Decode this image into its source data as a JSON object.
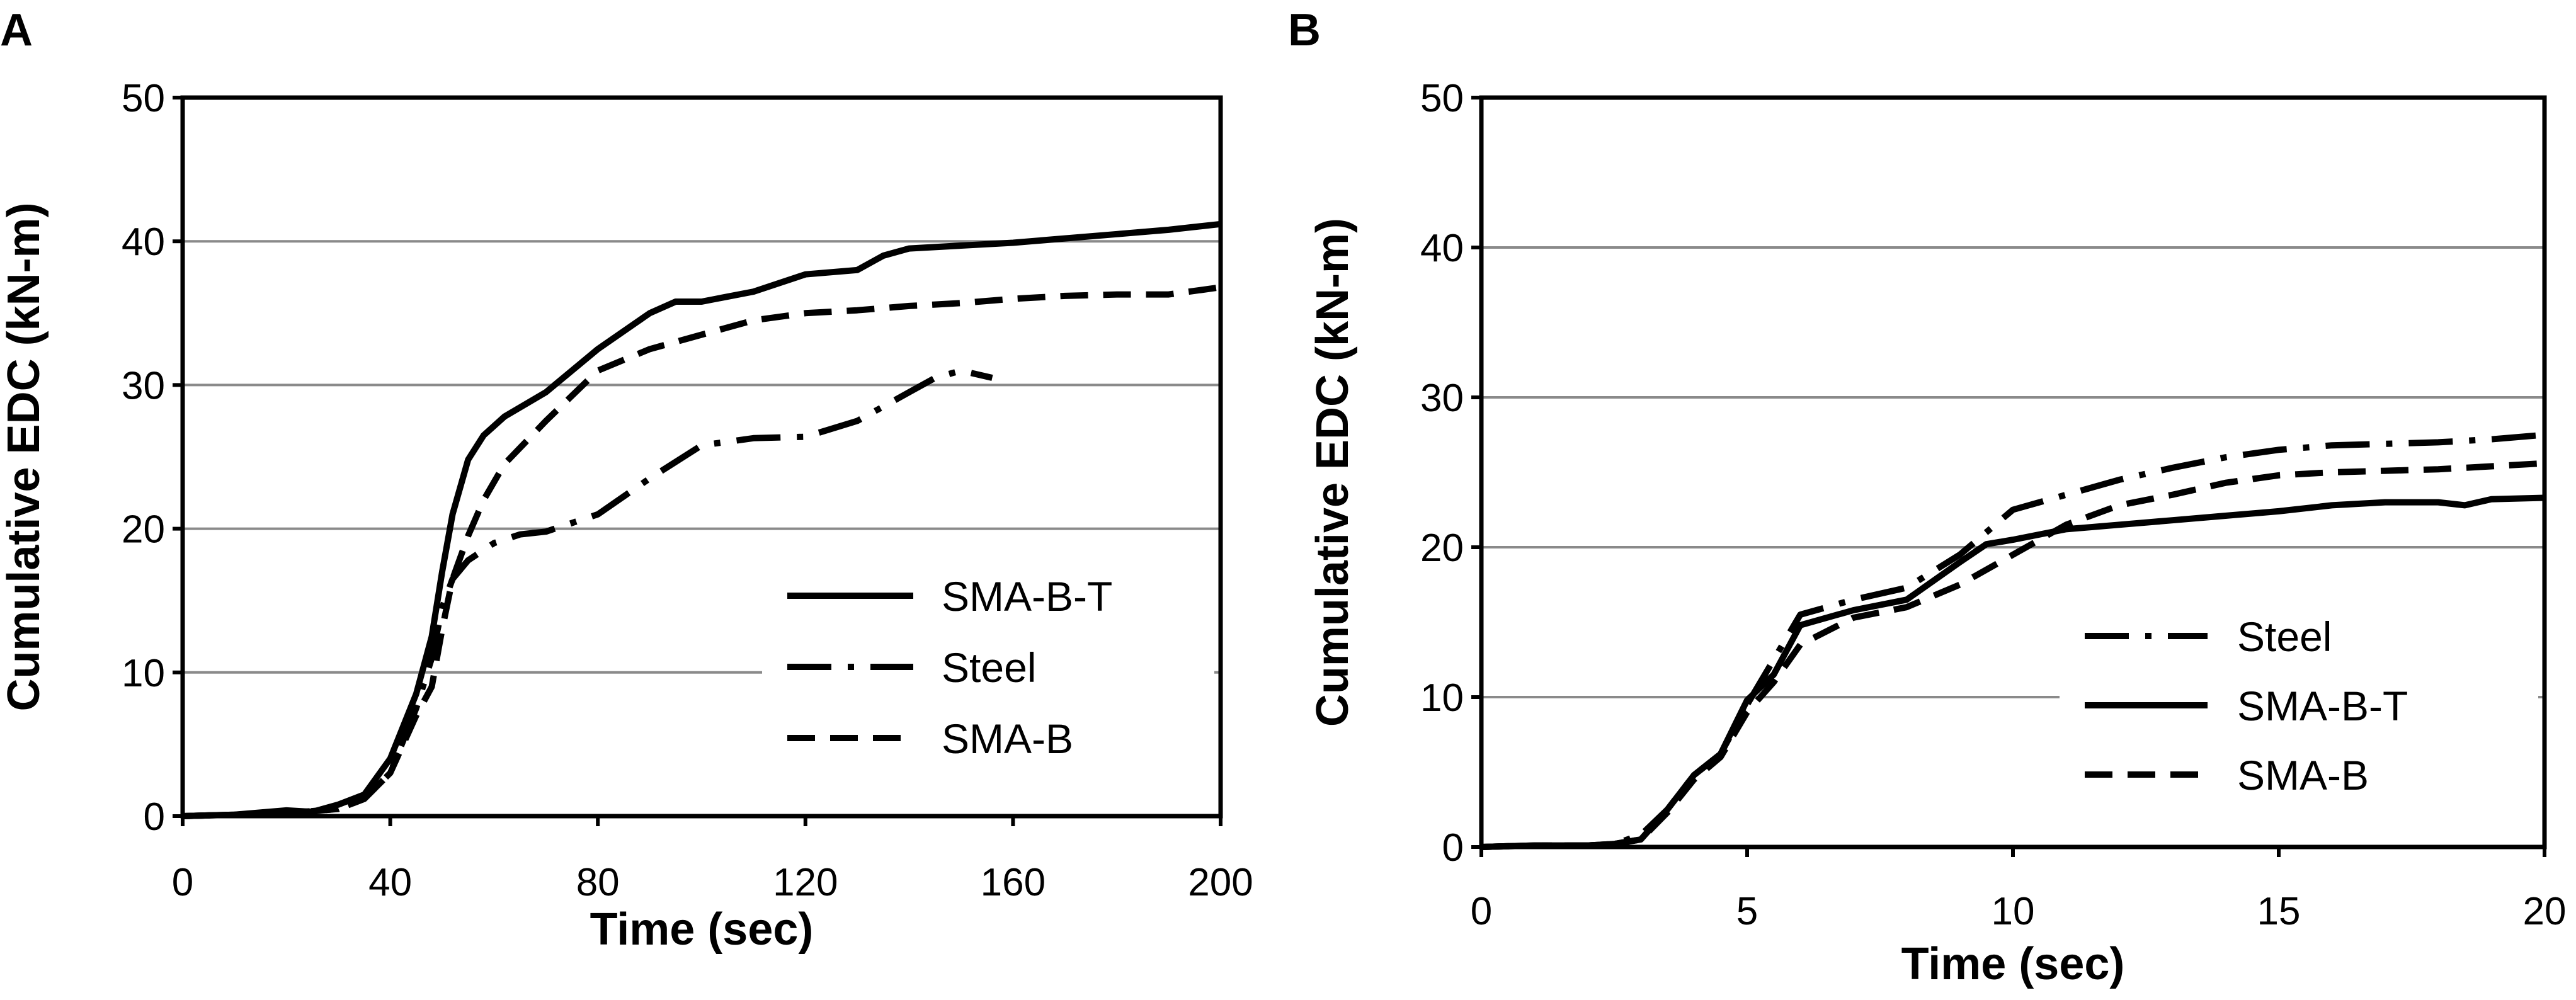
{
  "chart_data": [
    {
      "panel_label": "A",
      "type": "line",
      "xlabel": "Time (sec)",
      "ylabel": "Cumulative EDC (kN-m)",
      "xlim": [
        0,
        200
      ],
      "ylim": [
        0,
        50
      ],
      "x_ticks": [
        "0",
        "40",
        "80",
        "120",
        "160",
        "200"
      ],
      "y_ticks": [
        "0",
        "10",
        "20",
        "30",
        "40",
        "50"
      ],
      "legend": [
        "SMA-B-T",
        "Steel",
        "SMA-B"
      ],
      "series": [
        {
          "name": "SMA-B-T",
          "style": "solid",
          "x": [
            0,
            10,
            20,
            25,
            30,
            35,
            40,
            45,
            48,
            50,
            52,
            55,
            58,
            62,
            70,
            80,
            90,
            95,
            100,
            110,
            120,
            130,
            135,
            140,
            150,
            160,
            170,
            180,
            190,
            200
          ],
          "y": [
            0,
            0.1,
            0.4,
            0.3,
            0.8,
            1.5,
            4,
            8.5,
            12.5,
            17,
            21,
            24.8,
            26.5,
            27.8,
            29.5,
            32.5,
            35,
            35.8,
            35.8,
            36.5,
            37.7,
            38,
            39,
            39.5,
            39.7,
            39.9,
            40.2,
            40.5,
            40.8,
            41.2
          ]
        },
        {
          "name": "Steel",
          "style": "dashdot",
          "x": [
            0,
            10,
            20,
            30,
            35,
            40,
            45,
            48,
            50,
            52,
            55,
            60,
            65,
            70,
            80,
            90,
            100,
            110,
            120,
            130,
            140,
            145,
            150,
            156
          ],
          "y": [
            0,
            0.1,
            0.2,
            0.5,
            1.2,
            3,
            7.5,
            11,
            14.5,
            16.5,
            17.8,
            19,
            19.6,
            19.8,
            21,
            23.5,
            25.8,
            26.3,
            26.4,
            27.5,
            29.5,
            30.5,
            31,
            30.5
          ]
        },
        {
          "name": "SMA-B",
          "style": "dashed",
          "x": [
            0,
            10,
            20,
            30,
            35,
            40,
            45,
            48,
            50,
            52,
            55,
            58,
            62,
            70,
            80,
            90,
            100,
            110,
            120,
            130,
            140,
            150,
            160,
            170,
            180,
            190,
            200
          ],
          "y": [
            0,
            0.1,
            0.2,
            0.5,
            1.2,
            3,
            7,
            9,
            13,
            16.5,
            19.5,
            22,
            24.5,
            27.5,
            31,
            32.5,
            33.5,
            34.5,
            35,
            35.2,
            35.5,
            35.7,
            36,
            36.2,
            36.3,
            36.3,
            36.8
          ]
        }
      ]
    },
    {
      "panel_label": "B",
      "type": "line",
      "xlabel": "Time (sec)",
      "ylabel": "Cumulative EDC (kN-m)",
      "xlim": [
        0,
        20
      ],
      "ylim": [
        0,
        50
      ],
      "x_ticks": [
        "0",
        "5",
        "10",
        "15",
        "20"
      ],
      "y_ticks": [
        "0",
        "10",
        "20",
        "30",
        "40",
        "50"
      ],
      "legend": [
        "Steel",
        "SMA-B-T",
        "SMA-B"
      ],
      "series": [
        {
          "name": "Steel",
          "style": "dashdot",
          "x": [
            0,
            1,
            2,
            2.5,
            3,
            3.5,
            4,
            4.5,
            5,
            5.5,
            6,
            7,
            8,
            9,
            10,
            11,
            12,
            13,
            14,
            15,
            16,
            17,
            18,
            19,
            20
          ],
          "y": [
            0,
            0.1,
            0.1,
            0.2,
            0.8,
            2.5,
            4.8,
            6.2,
            9.5,
            12.5,
            15.5,
            16.5,
            17.3,
            19.5,
            22.5,
            23.5,
            24.5,
            25.3,
            26,
            26.5,
            26.8,
            26.9,
            27,
            27.2,
            27.5
          ]
        },
        {
          "name": "SMA-B-T",
          "style": "solid",
          "x": [
            0,
            1,
            2,
            2.5,
            3,
            3.5,
            4,
            4.5,
            5,
            5.5,
            6,
            7,
            8,
            9,
            9.5,
            10,
            11,
            12,
            13,
            14,
            15,
            16,
            17,
            18,
            18.5,
            19,
            20
          ],
          "y": [
            0,
            0.1,
            0.1,
            0.2,
            0.5,
            2.5,
            4.8,
            6.2,
            9.8,
            11.5,
            14.8,
            15.8,
            16.5,
            19,
            20.2,
            20.5,
            21.2,
            21.5,
            21.8,
            22.1,
            22.4,
            22.8,
            23,
            23,
            22.8,
            23.2,
            23.3
          ]
        },
        {
          "name": "SMA-B",
          "style": "dashed",
          "x": [
            0,
            1,
            2,
            2.5,
            3,
            3.5,
            4,
            4.5,
            5,
            5.5,
            6,
            7,
            8,
            9,
            10,
            11,
            12,
            13,
            14,
            15,
            16,
            17,
            18,
            19,
            20
          ],
          "y": [
            0,
            0.1,
            0.1,
            0.2,
            0.5,
            2.3,
            4.5,
            6,
            9,
            11,
            13.5,
            15.3,
            16,
            17.5,
            19.5,
            21.5,
            22.8,
            23.5,
            24.3,
            24.8,
            25,
            25.1,
            25.2,
            25.4,
            25.6
          ]
        }
      ]
    }
  ]
}
